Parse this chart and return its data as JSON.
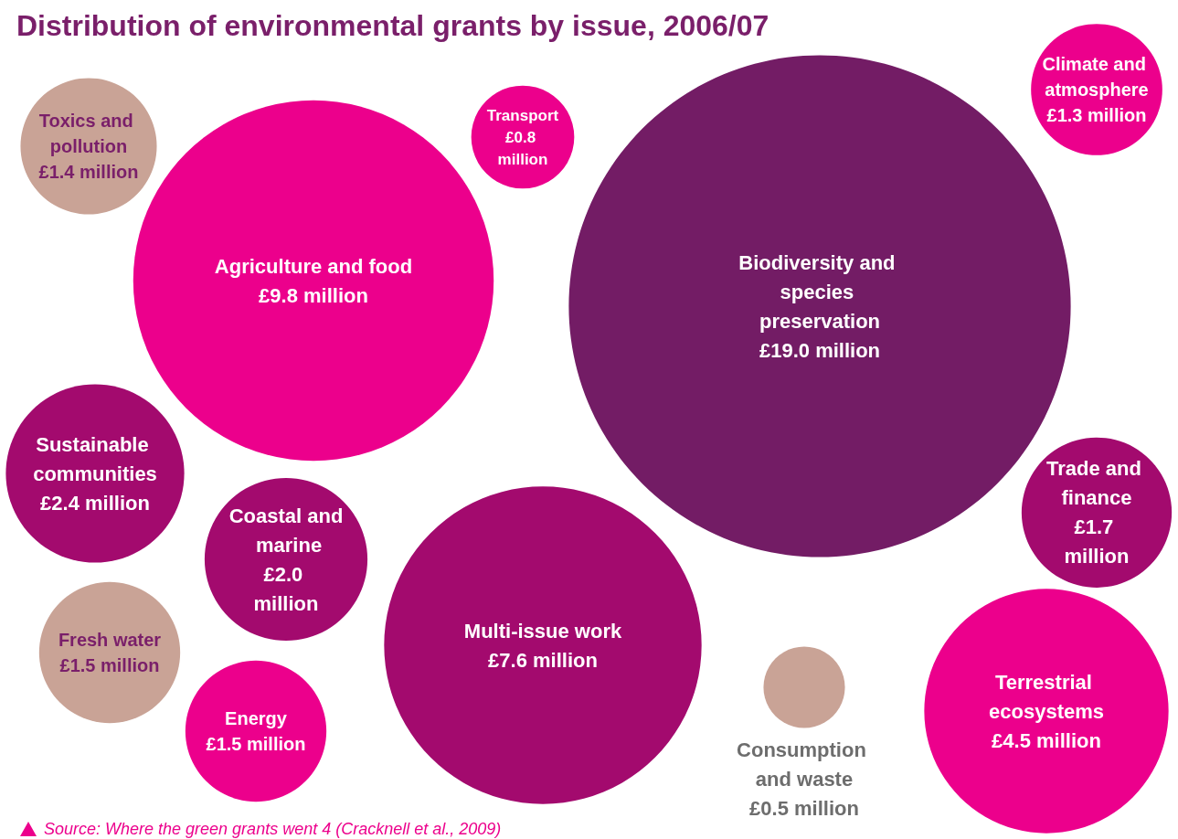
{
  "chart_data": {
    "type": "other",
    "title": "Distribution of environmental grants by issue, 2006/07",
    "categories": [
      "Toxics and pollution",
      "Transport",
      "Climate and atmosphere",
      "Agriculture and food",
      "Biodiversity and species preservation",
      "Sustainable communities",
      "Trade and finance",
      "Coastal and marine",
      "Multi-issue work",
      "Fresh water",
      "Energy",
      "Consumption and waste",
      "Terrestrial ecosystems"
    ],
    "values": [
      1.4,
      0.8,
      1.3,
      9.8,
      19.0,
      2.4,
      1.7,
      2.0,
      7.6,
      1.5,
      1.5,
      0.5,
      4.5
    ],
    "value_labels": [
      "£1.4 million",
      "£0.8 million",
      "£1.3 million",
      "£9.8 million",
      "£19.0 million",
      "£2.4 million",
      "£1.7 million",
      "£2.0 million",
      "£7.6 million",
      "£1.5 million",
      "£1.5 million",
      "£0.5 million",
      "£4.5 million"
    ],
    "colors": [
      "#c9a396",
      "#ec008c",
      "#ec008c",
      "#ec008c",
      "#731c65",
      "#a30a6e",
      "#a30a6e",
      "#a30a6e",
      "#a30a6e",
      "#c9a396",
      "#ec008c",
      "#c9a396",
      "#ec008c"
    ],
    "annotations": [
      "Source: Where the green grants went 4 (Cracknell et al., 2009)"
    ]
  }
}
